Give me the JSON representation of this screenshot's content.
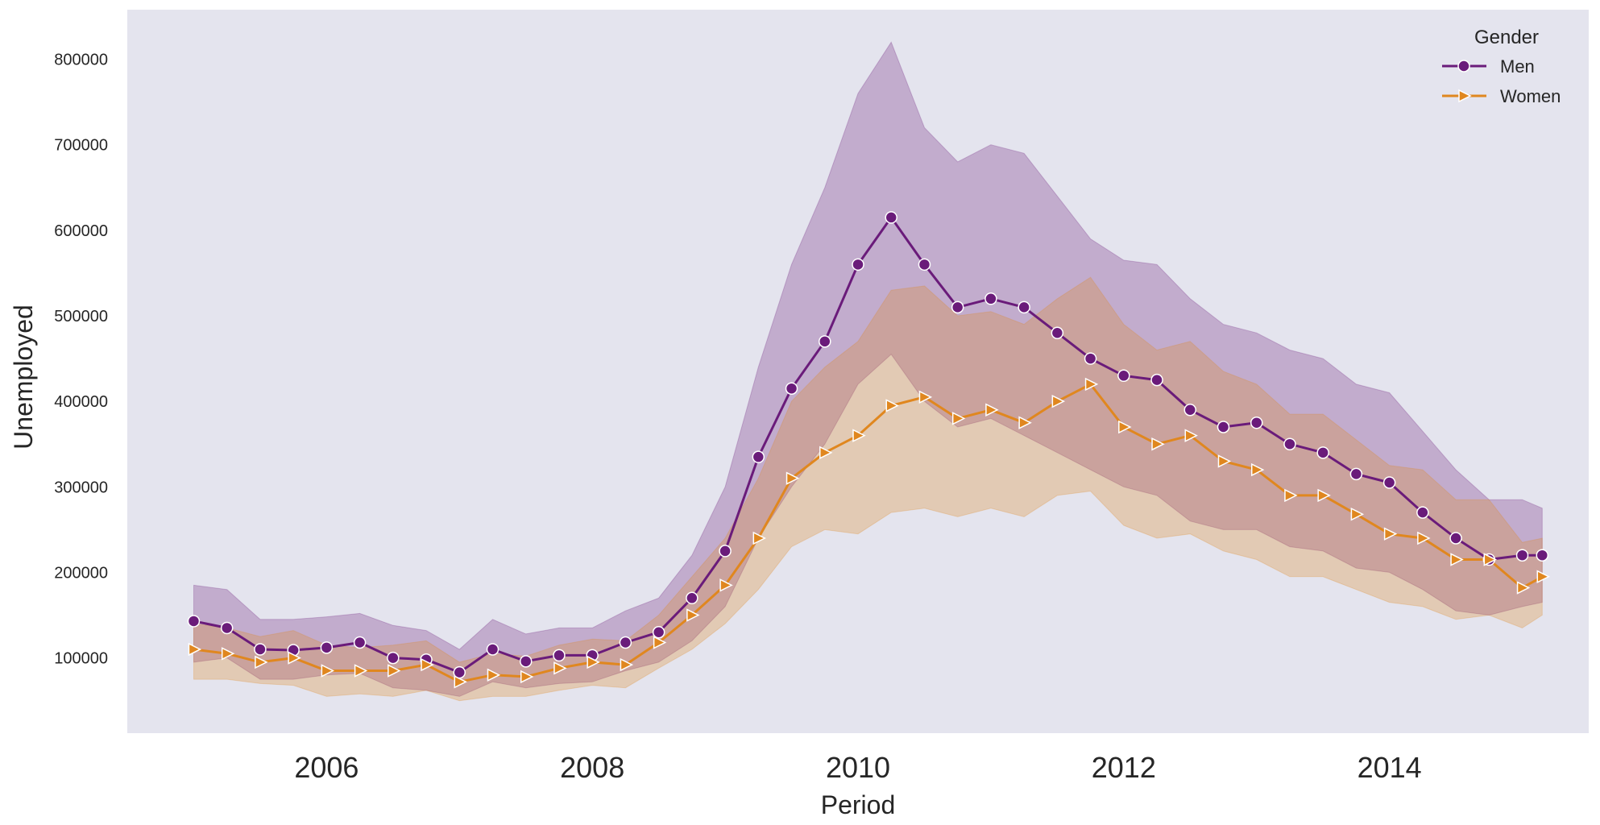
{
  "chart_data": {
    "type": "line",
    "xlabel": "Period",
    "ylabel": "Unemployed",
    "legend_title": "Gender",
    "legend_position": "top-right",
    "grid": false,
    "background": "#e4e4ee",
    "xlim": [
      2004.5,
      2015.5
    ],
    "ylim": [
      12000,
      858000
    ],
    "x_ticks": [
      2006,
      2008,
      2010,
      2012,
      2014
    ],
    "x_tick_labels": [
      "2006",
      "2008",
      "2010",
      "2012",
      "2014"
    ],
    "y_ticks": [
      100000,
      200000,
      300000,
      400000,
      500000,
      600000,
      700000,
      800000
    ],
    "y_tick_labels": [
      "100000",
      "200000",
      "300000",
      "400000",
      "500000",
      "600000",
      "700000",
      "800000"
    ],
    "series": [
      {
        "name": "Men",
        "color": "#6a1b7a",
        "band_color": "#c8b4d8",
        "marker": "circle",
        "points": [
          [
            2005.0,
            143000
          ],
          [
            2005.25,
            135000
          ],
          [
            2005.5,
            110000
          ],
          [
            2005.75,
            109000
          ],
          [
            2006.0,
            112000
          ],
          [
            2006.25,
            118000
          ],
          [
            2006.5,
            100000
          ],
          [
            2006.75,
            98000
          ],
          [
            2007.0,
            83000
          ],
          [
            2007.25,
            110000
          ],
          [
            2007.5,
            96000
          ],
          [
            2007.75,
            103000
          ],
          [
            2008.0,
            103000
          ],
          [
            2008.25,
            118000
          ],
          [
            2008.5,
            130000
          ],
          [
            2008.75,
            170000
          ],
          [
            2009.0,
            225000
          ],
          [
            2009.25,
            335000
          ],
          [
            2009.5,
            415000
          ],
          [
            2009.75,
            470000
          ],
          [
            2010.0,
            560000
          ],
          [
            2010.25,
            615000
          ],
          [
            2010.5,
            560000
          ],
          [
            2010.75,
            510000
          ],
          [
            2011.0,
            520000
          ],
          [
            2011.25,
            510000
          ],
          [
            2011.5,
            480000
          ],
          [
            2011.75,
            450000
          ],
          [
            2012.0,
            430000
          ],
          [
            2012.25,
            425000
          ],
          [
            2012.5,
            390000
          ],
          [
            2012.75,
            370000
          ],
          [
            2013.0,
            375000
          ],
          [
            2013.25,
            350000
          ],
          [
            2013.5,
            340000
          ],
          [
            2013.75,
            315000
          ],
          [
            2014.0,
            305000
          ],
          [
            2014.25,
            270000
          ],
          [
            2014.5,
            240000
          ],
          [
            2014.75,
            215000
          ],
          [
            2015.0,
            220000
          ],
          [
            2015.15,
            220000
          ]
        ],
        "band": [
          [
            2005.0,
            95000,
            185000
          ],
          [
            2005.25,
            100000,
            180000
          ],
          [
            2005.5,
            75000,
            145000
          ],
          [
            2005.75,
            75000,
            145000
          ],
          [
            2006.0,
            80000,
            148000
          ],
          [
            2006.25,
            82000,
            152000
          ],
          [
            2006.5,
            65000,
            138000
          ],
          [
            2006.75,
            62000,
            132000
          ],
          [
            2007.0,
            55000,
            110000
          ],
          [
            2007.25,
            72000,
            145000
          ],
          [
            2007.5,
            65000,
            128000
          ],
          [
            2007.75,
            70000,
            135000
          ],
          [
            2008.0,
            72000,
            135000
          ],
          [
            2008.25,
            85000,
            155000
          ],
          [
            2008.5,
            95000,
            170000
          ],
          [
            2008.75,
            120000,
            220000
          ],
          [
            2009.0,
            160000,
            300000
          ],
          [
            2009.25,
            240000,
            440000
          ],
          [
            2009.5,
            300000,
            560000
          ],
          [
            2009.75,
            350000,
            650000
          ],
          [
            2010.0,
            420000,
            760000
          ],
          [
            2010.25,
            455000,
            820000
          ],
          [
            2010.5,
            400000,
            720000
          ],
          [
            2010.75,
            370000,
            680000
          ],
          [
            2011.0,
            380000,
            700000
          ],
          [
            2011.25,
            360000,
            690000
          ],
          [
            2011.5,
            340000,
            640000
          ],
          [
            2011.75,
            320000,
            590000
          ],
          [
            2012.0,
            300000,
            565000
          ],
          [
            2012.25,
            290000,
            560000
          ],
          [
            2012.5,
            260000,
            520000
          ],
          [
            2012.75,
            250000,
            490000
          ],
          [
            2013.0,
            250000,
            480000
          ],
          [
            2013.25,
            230000,
            460000
          ],
          [
            2013.5,
            225000,
            450000
          ],
          [
            2013.75,
            205000,
            420000
          ],
          [
            2014.0,
            200000,
            410000
          ],
          [
            2014.25,
            180000,
            365000
          ],
          [
            2014.5,
            155000,
            320000
          ],
          [
            2014.75,
            150000,
            285000
          ],
          [
            2015.0,
            160000,
            285000
          ],
          [
            2015.15,
            165000,
            275000
          ]
        ]
      },
      {
        "name": "Women",
        "color": "#e0871f",
        "band_color": "#e0cba8",
        "marker": "triangle-right",
        "points": [
          [
            2005.0,
            110000
          ],
          [
            2005.25,
            105000
          ],
          [
            2005.5,
            95000
          ],
          [
            2005.75,
            100000
          ],
          [
            2006.0,
            85000
          ],
          [
            2006.25,
            85000
          ],
          [
            2006.5,
            85000
          ],
          [
            2006.75,
            92000
          ],
          [
            2007.0,
            72000
          ],
          [
            2007.25,
            80000
          ],
          [
            2007.5,
            78000
          ],
          [
            2007.75,
            88000
          ],
          [
            2008.0,
            95000
          ],
          [
            2008.25,
            92000
          ],
          [
            2008.5,
            118000
          ],
          [
            2008.75,
            150000
          ],
          [
            2009.0,
            185000
          ],
          [
            2009.25,
            240000
          ],
          [
            2009.5,
            310000
          ],
          [
            2009.75,
            340000
          ],
          [
            2010.0,
            360000
          ],
          [
            2010.25,
            395000
          ],
          [
            2010.5,
            405000
          ],
          [
            2010.75,
            380000
          ],
          [
            2011.0,
            390000
          ],
          [
            2011.25,
            375000
          ],
          [
            2011.5,
            400000
          ],
          [
            2011.75,
            420000
          ],
          [
            2012.0,
            370000
          ],
          [
            2012.25,
            350000
          ],
          [
            2012.5,
            360000
          ],
          [
            2012.75,
            330000
          ],
          [
            2013.0,
            320000
          ],
          [
            2013.25,
            290000
          ],
          [
            2013.5,
            290000
          ],
          [
            2013.75,
            268000
          ],
          [
            2014.0,
            245000
          ],
          [
            2014.25,
            240000
          ],
          [
            2014.5,
            215000
          ],
          [
            2014.75,
            215000
          ],
          [
            2015.0,
            182000
          ],
          [
            2015.15,
            195000
          ]
        ],
        "band": [
          [
            2005.0,
            75000,
            140000
          ],
          [
            2005.25,
            75000,
            135000
          ],
          [
            2005.5,
            70000,
            125000
          ],
          [
            2005.75,
            68000,
            132000
          ],
          [
            2006.0,
            55000,
            115000
          ],
          [
            2006.25,
            58000,
            112000
          ],
          [
            2006.5,
            55000,
            115000
          ],
          [
            2006.75,
            62000,
            120000
          ],
          [
            2007.0,
            50000,
            95000
          ],
          [
            2007.25,
            55000,
            105000
          ],
          [
            2007.5,
            55000,
            102000
          ],
          [
            2007.75,
            62000,
            115000
          ],
          [
            2008.0,
            68000,
            122000
          ],
          [
            2008.25,
            65000,
            120000
          ],
          [
            2008.5,
            88000,
            150000
          ],
          [
            2008.75,
            110000,
            195000
          ],
          [
            2009.0,
            140000,
            240000
          ],
          [
            2009.25,
            180000,
            310000
          ],
          [
            2009.5,
            230000,
            400000
          ],
          [
            2009.75,
            250000,
            440000
          ],
          [
            2010.0,
            245000,
            470000
          ],
          [
            2010.25,
            270000,
            530000
          ],
          [
            2010.5,
            275000,
            535000
          ],
          [
            2010.75,
            265000,
            500000
          ],
          [
            2011.0,
            275000,
            505000
          ],
          [
            2011.25,
            265000,
            490000
          ],
          [
            2011.5,
            290000,
            520000
          ],
          [
            2011.75,
            295000,
            545000
          ],
          [
            2012.0,
            255000,
            490000
          ],
          [
            2012.25,
            240000,
            460000
          ],
          [
            2012.5,
            245000,
            470000
          ],
          [
            2012.75,
            225000,
            435000
          ],
          [
            2013.0,
            215000,
            420000
          ],
          [
            2013.25,
            195000,
            385000
          ],
          [
            2013.5,
            195000,
            385000
          ],
          [
            2013.75,
            180000,
            355000
          ],
          [
            2014.0,
            165000,
            325000
          ],
          [
            2014.25,
            160000,
            320000
          ],
          [
            2014.5,
            145000,
            285000
          ],
          [
            2014.75,
            150000,
            285000
          ],
          [
            2015.0,
            135000,
            235000
          ],
          [
            2015.15,
            150000,
            240000
          ]
        ]
      }
    ]
  }
}
